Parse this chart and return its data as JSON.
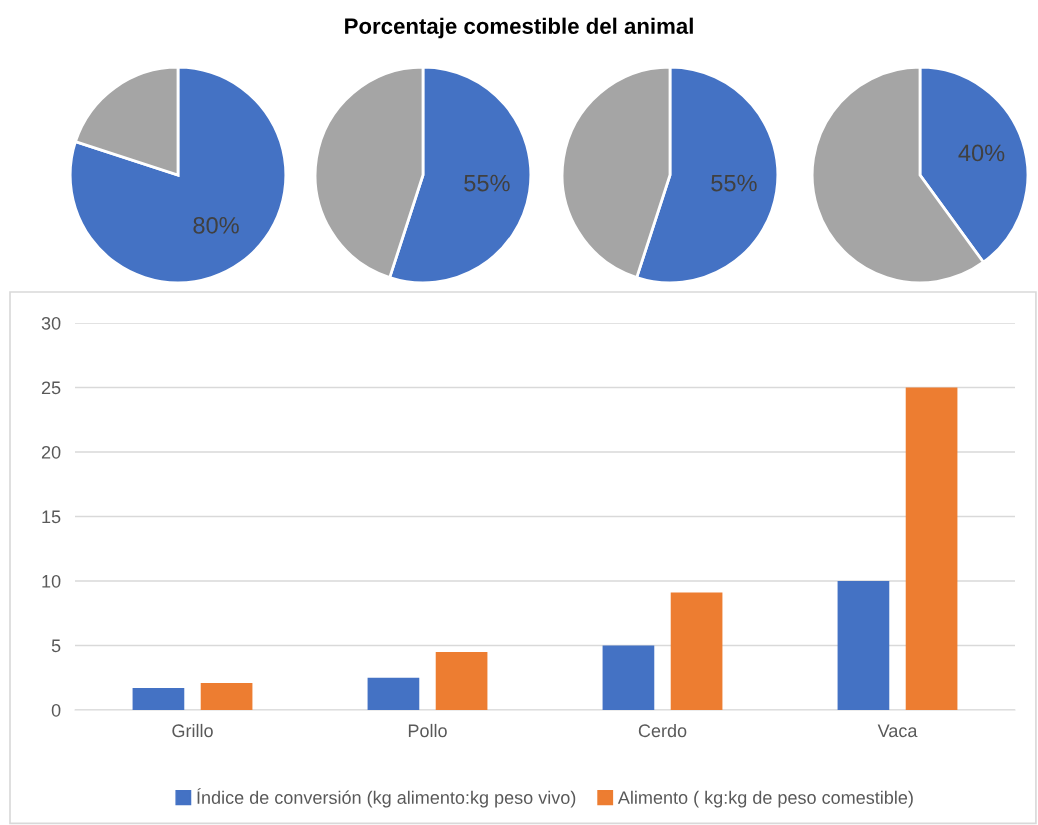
{
  "chart_data": [
    {
      "type": "other",
      "title": "Porcentaje comestible del animal"
    },
    {
      "type": "pie",
      "categories": [
        null,
        null
      ],
      "values": [
        80,
        20
      ],
      "colors": [
        "#4472c4",
        "#a5a5a5"
      ],
      "value_labels": [
        "80%",
        null
      ]
    },
    {
      "type": "pie",
      "categories": [
        null,
        null
      ],
      "values": [
        55,
        45
      ],
      "colors": [
        "#4472c4",
        "#a5a5a5"
      ],
      "value_labels": [
        "55%",
        null
      ]
    },
    {
      "type": "pie",
      "categories": [
        null,
        null
      ],
      "values": [
        55,
        45
      ],
      "colors": [
        "#4472c4",
        "#a5a5a5"
      ],
      "value_labels": [
        "55%",
        null
      ]
    },
    {
      "type": "pie",
      "categories": [
        null,
        null
      ],
      "values": [
        40,
        60
      ],
      "colors": [
        "#4472c4",
        "#a5a5a5"
      ],
      "value_labels": [
        "40%",
        null
      ]
    },
    {
      "type": "bar",
      "categories": [
        "Grillo",
        "Pollo",
        "Cerdo",
        "Vaca"
      ],
      "series": [
        {
          "name": "Índice de conversión (kg alimento:kg peso vivo)",
          "color": "#4472c4",
          "values": [
            1.7,
            2.5,
            5,
            10
          ]
        },
        {
          "name": "Alimento ( kg:kg de peso comestible)",
          "color": "#ed7d31",
          "values": [
            2.1,
            4.5,
            9.1,
            25
          ]
        }
      ],
      "ylim": [
        0,
        30
      ],
      "yticks": [
        0,
        5,
        10,
        15,
        20,
        25,
        30
      ],
      "grid": "y",
      "legend": "bottom"
    }
  ]
}
